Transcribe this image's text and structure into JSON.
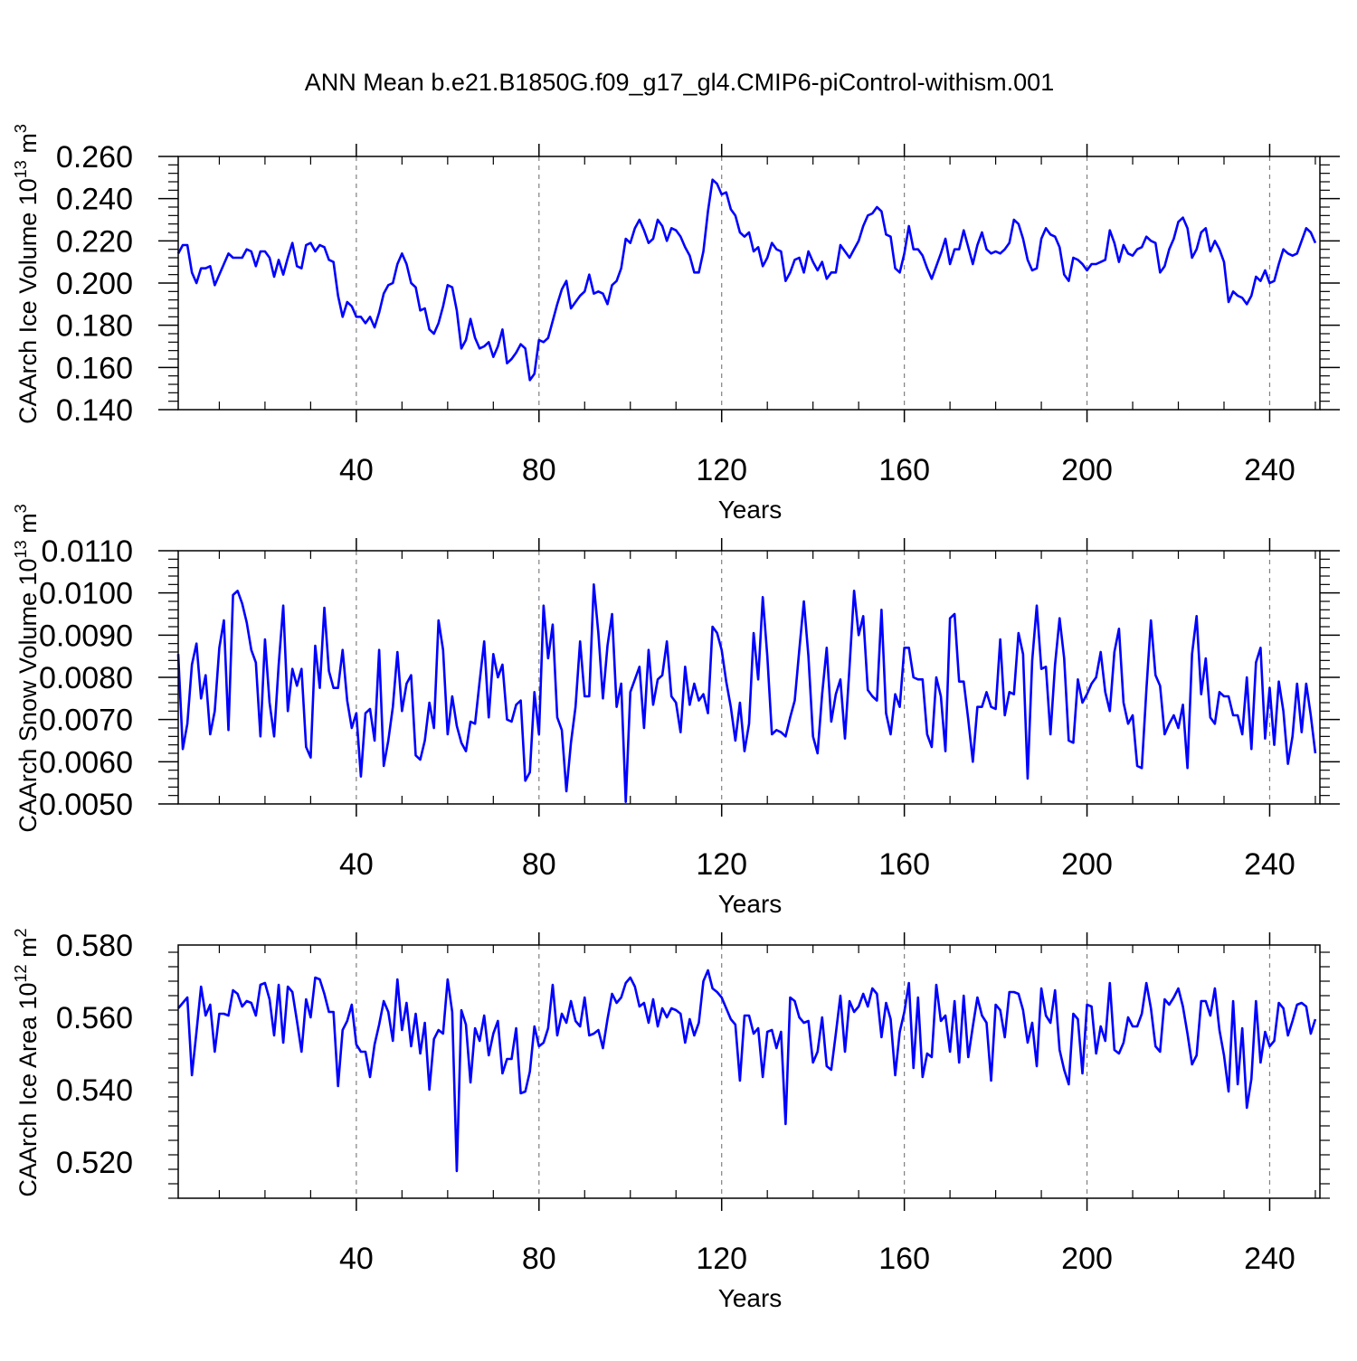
{
  "title": "ANN Mean b.e21.B1850G.f09_g17_gl4.CMIP6-piControl-withism.001",
  "colors": {
    "line": "#0000ff",
    "axis": "#000000",
    "grid": "#808080"
  },
  "chart_data": [
    {
      "type": "line",
      "name": "ice-volume",
      "ylabel": "CAArch Ice Volume 10",
      "ylabel_exp": "13",
      "ylabel_unit": " m",
      "ylabel_unit_exp": "3",
      "xlabel": "Years",
      "xlim": [
        1,
        251
      ],
      "ylim": [
        0.14,
        0.26
      ],
      "xticks": [
        40,
        80,
        120,
        160,
        200,
        240
      ],
      "xtick_labels": [
        "40",
        "80",
        "120",
        "160",
        "200",
        "240"
      ],
      "yticks": [
        0.14,
        0.16,
        0.18,
        0.2,
        0.22,
        0.24,
        0.26
      ],
      "ytick_labels": [
        "0.140",
        "0.160",
        "0.180",
        "0.200",
        "0.220",
        "0.240",
        "0.260"
      ],
      "grid": "vertical dashed at major x ticks",
      "x_start": 1,
      "values": [
        0.214,
        0.218,
        0.218,
        0.205,
        0.2,
        0.207,
        0.207,
        0.208,
        0.199,
        0.204,
        0.209,
        0.214,
        0.212,
        0.212,
        0.212,
        0.216,
        0.215,
        0.208,
        0.215,
        0.215,
        0.212,
        0.203,
        0.211,
        0.204,
        0.212,
        0.219,
        0.208,
        0.207,
        0.218,
        0.219,
        0.215,
        0.218,
        0.217,
        0.211,
        0.21,
        0.194,
        0.184,
        0.191,
        0.189,
        0.184,
        0.184,
        0.181,
        0.184,
        0.179,
        0.186,
        0.195,
        0.199,
        0.2,
        0.209,
        0.214,
        0.209,
        0.2,
        0.198,
        0.187,
        0.188,
        0.178,
        0.176,
        0.181,
        0.189,
        0.199,
        0.198,
        0.187,
        0.169,
        0.173,
        0.183,
        0.174,
        0.169,
        0.17,
        0.172,
        0.165,
        0.17,
        0.178,
        0.162,
        0.164,
        0.167,
        0.171,
        0.169,
        0.154,
        0.157,
        0.173,
        0.172,
        0.174,
        0.182,
        0.19,
        0.197,
        0.201,
        0.188,
        0.191,
        0.194,
        0.196,
        0.204,
        0.195,
        0.196,
        0.195,
        0.19,
        0.199,
        0.201,
        0.207,
        0.221,
        0.219,
        0.226,
        0.23,
        0.225,
        0.219,
        0.221,
        0.23,
        0.227,
        0.22,
        0.226,
        0.225,
        0.222,
        0.217,
        0.213,
        0.205,
        0.205,
        0.215,
        0.234,
        0.249,
        0.247,
        0.242,
        0.243,
        0.235,
        0.232,
        0.224,
        0.222,
        0.224,
        0.215,
        0.217,
        0.208,
        0.212,
        0.219,
        0.216,
        0.215,
        0.201,
        0.205,
        0.211,
        0.212,
        0.205,
        0.215,
        0.21,
        0.206,
        0.21,
        0.202,
        0.205,
        0.205,
        0.218,
        0.215,
        0.212,
        0.216,
        0.22,
        0.227,
        0.232,
        0.233,
        0.236,
        0.234,
        0.223,
        0.222,
        0.207,
        0.205,
        0.214,
        0.227,
        0.216,
        0.216,
        0.213,
        0.207,
        0.202,
        0.208,
        0.214,
        0.221,
        0.209,
        0.216,
        0.216,
        0.225,
        0.217,
        0.209,
        0.218,
        0.224,
        0.216,
        0.214,
        0.215,
        0.214,
        0.216,
        0.219,
        0.23,
        0.228,
        0.221,
        0.211,
        0.206,
        0.207,
        0.221,
        0.226,
        0.223,
        0.222,
        0.217,
        0.204,
        0.201,
        0.212,
        0.211,
        0.209,
        0.206,
        0.209,
        0.209,
        0.21,
        0.211,
        0.225,
        0.219,
        0.21,
        0.218,
        0.214,
        0.213,
        0.216,
        0.217,
        0.222,
        0.22,
        0.219,
        0.205,
        0.208,
        0.216,
        0.221,
        0.229,
        0.231,
        0.226,
        0.212,
        0.216,
        0.224,
        0.226,
        0.215,
        0.22,
        0.216,
        0.21,
        0.191,
        0.196,
        0.194,
        0.193,
        0.19,
        0.194,
        0.203,
        0.201,
        0.206,
        0.2,
        0.201,
        0.209,
        0.216,
        0.214,
        0.213,
        0.214,
        0.22,
        0.226,
        0.224,
        0.219
      ]
    },
    {
      "type": "line",
      "name": "snow-volume",
      "ylabel": "CAArch Snow Volume 10",
      "ylabel_exp": "13",
      "ylabel_unit": " m",
      "ylabel_unit_exp": "3",
      "xlabel": "Years",
      "xlim": [
        1,
        251
      ],
      "ylim": [
        0.005,
        0.011
      ],
      "xticks": [
        40,
        80,
        120,
        160,
        200,
        240
      ],
      "xtick_labels": [
        "40",
        "80",
        "120",
        "160",
        "200",
        "240"
      ],
      "yticks": [
        0.005,
        0.006,
        0.007,
        0.008,
        0.009,
        0.01,
        0.011
      ],
      "ytick_labels": [
        "0.0050",
        "0.0060",
        "0.0070",
        "0.0080",
        "0.0090",
        "0.0100",
        "0.0110"
      ],
      "grid": "vertical dashed at major x ticks",
      "x_start": 1,
      "values": [
        0.00855,
        0.0063,
        0.0069,
        0.0083,
        0.0088,
        0.0075,
        0.00805,
        0.00665,
        0.0072,
        0.0087,
        0.00935,
        0.00675,
        0.00995,
        0.01005,
        0.00975,
        0.0093,
        0.00865,
        0.00835,
        0.0066,
        0.0089,
        0.0074,
        0.0066,
        0.0083,
        0.0097,
        0.0072,
        0.0082,
        0.0078,
        0.0082,
        0.00635,
        0.0061,
        0.00875,
        0.00775,
        0.00965,
        0.00815,
        0.00775,
        0.00775,
        0.00865,
        0.00745,
        0.0068,
        0.00715,
        0.00565,
        0.00715,
        0.00725,
        0.0065,
        0.00865,
        0.0059,
        0.0065,
        0.0073,
        0.0086,
        0.0072,
        0.00785,
        0.00805,
        0.00615,
        0.00605,
        0.0065,
        0.0074,
        0.0068,
        0.00935,
        0.00865,
        0.00665,
        0.00755,
        0.00685,
        0.00645,
        0.00625,
        0.00695,
        0.0069,
        0.0079,
        0.00885,
        0.00705,
        0.00855,
        0.008,
        0.0083,
        0.007,
        0.00695,
        0.00735,
        0.00745,
        0.00555,
        0.00575,
        0.00765,
        0.00665,
        0.0097,
        0.00845,
        0.00925,
        0.00705,
        0.00675,
        0.0053,
        0.00645,
        0.0073,
        0.00885,
        0.00755,
        0.00755,
        0.0102,
        0.00905,
        0.0075,
        0.00875,
        0.0095,
        0.0073,
        0.00785,
        0.00505,
        0.00765,
        0.00795,
        0.00825,
        0.0068,
        0.00865,
        0.00735,
        0.00795,
        0.00805,
        0.00885,
        0.00755,
        0.0074,
        0.0067,
        0.00825,
        0.00735,
        0.00785,
        0.00745,
        0.0076,
        0.00715,
        0.0092,
        0.00905,
        0.00865,
        0.0079,
        0.0073,
        0.0065,
        0.0074,
        0.00625,
        0.0069,
        0.00905,
        0.00795,
        0.0099,
        0.0085,
        0.00665,
        0.00675,
        0.0067,
        0.0066,
        0.00705,
        0.00745,
        0.00865,
        0.0098,
        0.0085,
        0.0066,
        0.0062,
        0.0076,
        0.0087,
        0.00695,
        0.0076,
        0.00795,
        0.00655,
        0.00825,
        0.01005,
        0.009,
        0.00945,
        0.0077,
        0.00755,
        0.00745,
        0.0096,
        0.00715,
        0.00665,
        0.0076,
        0.0073,
        0.0087,
        0.0087,
        0.008,
        0.00795,
        0.00795,
        0.00665,
        0.00635,
        0.008,
        0.00755,
        0.00625,
        0.0094,
        0.0095,
        0.0079,
        0.0079,
        0.007,
        0.006,
        0.0073,
        0.0073,
        0.00765,
        0.0073,
        0.00725,
        0.0089,
        0.0071,
        0.00765,
        0.0076,
        0.00905,
        0.00855,
        0.0056,
        0.0084,
        0.0097,
        0.0082,
        0.00825,
        0.00665,
        0.0083,
        0.0094,
        0.00845,
        0.0065,
        0.00645,
        0.00795,
        0.0074,
        0.0076,
        0.00785,
        0.008,
        0.0086,
        0.00765,
        0.0072,
        0.0086,
        0.00915,
        0.0074,
        0.0069,
        0.0071,
        0.0059,
        0.00585,
        0.0077,
        0.00935,
        0.00805,
        0.0078,
        0.00665,
        0.0069,
        0.0071,
        0.0068,
        0.00735,
        0.00585,
        0.00855,
        0.00945,
        0.0076,
        0.00845,
        0.00705,
        0.0069,
        0.00765,
        0.00755,
        0.00755,
        0.0071,
        0.0071,
        0.00665,
        0.008,
        0.0063,
        0.00835,
        0.0087,
        0.00655,
        0.00775,
        0.0064,
        0.0079,
        0.0072,
        0.00595,
        0.0066,
        0.00785,
        0.0067,
        0.00785,
        0.0071,
        0.0062
      ]
    },
    {
      "type": "line",
      "name": "ice-area",
      "ylabel": "CAArch Ice Area 10",
      "ylabel_exp": "12",
      "ylabel_unit": " m",
      "ylabel_unit_exp": "2",
      "xlabel": "Years",
      "xlim": [
        1,
        251
      ],
      "ylim": [
        0.51,
        0.58
      ],
      "xticks": [
        40,
        80,
        120,
        160,
        200,
        240
      ],
      "xtick_labels": [
        "40",
        "80",
        "120",
        "160",
        "200",
        "240"
      ],
      "yticks": [
        0.52,
        0.54,
        0.56,
        0.58
      ],
      "ytick_labels": [
        "0.520",
        "0.540",
        "0.560",
        "0.580"
      ],
      "grid": "vertical dashed at major x ticks",
      "x_start": 1,
      "values": [
        0.5625,
        0.564,
        0.5655,
        0.544,
        0.556,
        0.5685,
        0.5605,
        0.5635,
        0.5505,
        0.561,
        0.561,
        0.5605,
        0.5675,
        0.5665,
        0.563,
        0.5645,
        0.564,
        0.5605,
        0.569,
        0.5695,
        0.565,
        0.555,
        0.569,
        0.553,
        0.5685,
        0.567,
        0.559,
        0.5505,
        0.565,
        0.56,
        0.571,
        0.5705,
        0.5665,
        0.5615,
        0.5615,
        0.541,
        0.5565,
        0.559,
        0.5635,
        0.5525,
        0.5505,
        0.5505,
        0.5435,
        0.5525,
        0.558,
        0.5645,
        0.5615,
        0.5535,
        0.5705,
        0.5565,
        0.564,
        0.552,
        0.561,
        0.55,
        0.5585,
        0.54,
        0.554,
        0.5565,
        0.5555,
        0.5705,
        0.5615,
        0.5175,
        0.562,
        0.558,
        0.542,
        0.557,
        0.5535,
        0.5605,
        0.5495,
        0.5555,
        0.559,
        0.5445,
        0.5485,
        0.5485,
        0.557,
        0.539,
        0.5395,
        0.545,
        0.5575,
        0.552,
        0.553,
        0.557,
        0.569,
        0.555,
        0.561,
        0.5585,
        0.5645,
        0.559,
        0.5575,
        0.5655,
        0.555,
        0.5555,
        0.5565,
        0.5515,
        0.5595,
        0.5665,
        0.564,
        0.5655,
        0.5695,
        0.571,
        0.5685,
        0.563,
        0.564,
        0.5585,
        0.565,
        0.5575,
        0.5625,
        0.56,
        0.5625,
        0.562,
        0.561,
        0.553,
        0.5595,
        0.555,
        0.5585,
        0.57,
        0.573,
        0.568,
        0.567,
        0.5655,
        0.5625,
        0.5595,
        0.558,
        0.5425,
        0.5605,
        0.5605,
        0.5555,
        0.557,
        0.5435,
        0.556,
        0.5565,
        0.5515,
        0.556,
        0.5305,
        0.5655,
        0.5645,
        0.56,
        0.5585,
        0.559,
        0.5475,
        0.5505,
        0.56,
        0.5465,
        0.5455,
        0.5555,
        0.566,
        0.5505,
        0.5645,
        0.5615,
        0.563,
        0.5665,
        0.563,
        0.568,
        0.5665,
        0.5545,
        0.564,
        0.5595,
        0.544,
        0.556,
        0.5615,
        0.5695,
        0.546,
        0.5655,
        0.5435,
        0.55,
        0.549,
        0.569,
        0.559,
        0.5605,
        0.5505,
        0.5645,
        0.5475,
        0.566,
        0.549,
        0.5575,
        0.5655,
        0.5605,
        0.5585,
        0.5425,
        0.5635,
        0.562,
        0.5545,
        0.567,
        0.567,
        0.5665,
        0.562,
        0.553,
        0.5585,
        0.5465,
        0.568,
        0.5605,
        0.5585,
        0.5675,
        0.551,
        0.5455,
        0.5415,
        0.561,
        0.5595,
        0.5445,
        0.5635,
        0.563,
        0.55,
        0.5575,
        0.5535,
        0.5695,
        0.551,
        0.55,
        0.553,
        0.56,
        0.5575,
        0.5575,
        0.561,
        0.5695,
        0.5625,
        0.552,
        0.5505,
        0.565,
        0.5635,
        0.5655,
        0.568,
        0.563,
        0.5555,
        0.547,
        0.5495,
        0.5645,
        0.5645,
        0.5605,
        0.568,
        0.5565,
        0.5495,
        0.5395,
        0.5645,
        0.5415,
        0.557,
        0.535,
        0.543,
        0.5645,
        0.5475,
        0.556,
        0.552,
        0.5535,
        0.564,
        0.5625,
        0.555,
        0.559,
        0.5635,
        0.564,
        0.563,
        0.5555,
        0.5595
      ]
    }
  ]
}
